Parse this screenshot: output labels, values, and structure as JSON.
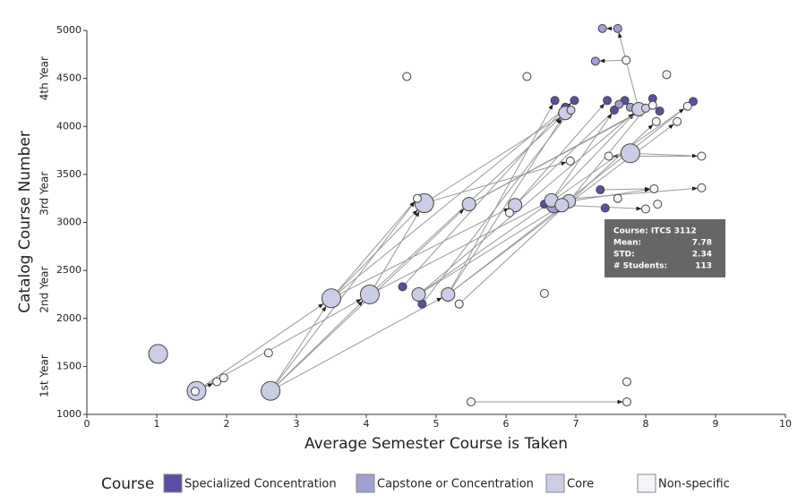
{
  "chart_data": {
    "type": "scatter",
    "xlabel": "Average Semester Course is Taken",
    "ylabel": "Catalog Course Number",
    "year_labels": [
      "1st Year",
      "2nd Year",
      "3rd Year",
      "4th Year"
    ],
    "xlim": [
      0,
      10
    ],
    "xticks": [
      0,
      1,
      2,
      3,
      4,
      5,
      6,
      7,
      8,
      9,
      10
    ],
    "ylim": [
      1000,
      5000
    ],
    "yticks": [
      1000,
      1500,
      2000,
      2500,
      3000,
      3500,
      4000,
      4500,
      5000
    ],
    "legend_title": "Course",
    "series": [
      {
        "name": "Specialized Concentration",
        "color": "#5b4fa0",
        "x": [
          4.52,
          4.8,
          6.55,
          6.75,
          7.35,
          7.42,
          6.7,
          6.98,
          7.45,
          7.7,
          8.1,
          8.68,
          7.55,
          6.85,
          8.2
        ],
        "y": [
          2330,
          2150,
          3190,
          3150,
          3340,
          3150,
          4270,
          4270,
          4270,
          4270,
          4290,
          4260,
          4170,
          4200,
          4160
        ],
        "sizes": [
          1,
          1,
          1,
          1,
          1,
          1,
          1,
          1,
          1,
          1,
          1,
          1,
          1,
          1,
          1
        ]
      },
      {
        "name": "Capstone or Concentration",
        "color": "#a09fd1",
        "x": [
          7.38,
          7.6,
          7.28,
          7.78,
          7.62,
          6.68
        ],
        "y": [
          5020,
          5020,
          4680,
          4200,
          4230,
          3170
        ],
        "sizes": [
          1,
          1,
          1,
          1,
          1,
          2
        ]
      },
      {
        "name": "Core",
        "color": "#cbcce5",
        "x": [
          1.02,
          1.57,
          2.63,
          3.5,
          4.05,
          4.75,
          5.17,
          4.83,
          5.47,
          6.13,
          6.65,
          6.9,
          6.8,
          7.78,
          6.85,
          6.93,
          7.9,
          8.0
        ],
        "y": [
          1630,
          1245,
          1245,
          2210,
          2250,
          2250,
          2250,
          3200,
          3190,
          3180,
          3230,
          3220,
          3180,
          3720,
          4140,
          4170,
          4180,
          4190
        ],
        "sizes": [
          3,
          3,
          3,
          3,
          3,
          2,
          2,
          3,
          2,
          2,
          2,
          2,
          2,
          3,
          2,
          1,
          2,
          1
        ]
      },
      {
        "name": "Non-specific",
        "color": "#f4f4f9",
        "x": [
          1.55,
          1.86,
          1.96,
          2.6,
          4.58,
          4.73,
          5.33,
          5.5,
          6.05,
          6.3,
          6.55,
          6.92,
          7.47,
          7.73,
          7.73,
          7.72,
          8.3,
          8.15,
          8.45,
          8.6,
          8.8,
          8.12,
          8.8,
          8.0,
          8.17,
          7.6,
          8.1
        ],
        "y": [
          1240,
          1340,
          1380,
          1640,
          4520,
          3250,
          2150,
          1130,
          3100,
          4520,
          2260,
          3640,
          3690,
          1340,
          1130,
          4690,
          4540,
          4050,
          4050,
          4210,
          3690,
          3350,
          3360,
          3140,
          3190,
          3250,
          4220
        ],
        "sizes": [
          1,
          1,
          1,
          1,
          1,
          1,
          1,
          1,
          1,
          1,
          1,
          1,
          1,
          1,
          1,
          1,
          1,
          1,
          1,
          1,
          1,
          1,
          1,
          1,
          1,
          1,
          1
        ]
      }
    ],
    "links": [
      [
        [
          2,
          1
        ],
        [
          2,
          3
        ]
      ],
      [
        [
          2,
          1
        ],
        [
          2,
          4
        ]
      ],
      [
        [
          2,
          2
        ],
        [
          2,
          4
        ]
      ],
      [
        [
          2,
          2
        ],
        [
          2,
          3
        ]
      ],
      [
        [
          2,
          2
        ],
        [
          2,
          8
        ]
      ],
      [
        [
          2,
          2
        ],
        [
          2,
          6
        ]
      ],
      [
        [
          2,
          3
        ],
        [
          2,
          7
        ]
      ],
      [
        [
          2,
          3
        ],
        [
          2,
          9
        ]
      ],
      [
        [
          2,
          4
        ],
        [
          2,
          14
        ]
      ],
      [
        [
          2,
          4
        ],
        [
          2,
          10
        ]
      ],
      [
        [
          2,
          4
        ],
        [
          2,
          7
        ]
      ],
      [
        [
          2,
          5
        ],
        [
          2,
          16
        ]
      ],
      [
        [
          2,
          5
        ],
        [
          2,
          12
        ]
      ],
      [
        [
          2,
          6
        ],
        [
          2,
          14
        ]
      ],
      [
        [
          2,
          6
        ],
        [
          2,
          11
        ]
      ],
      [
        [
          2,
          6
        ],
        [
          0,
          6
        ]
      ],
      [
        [
          2,
          7
        ],
        [
          2,
          15
        ]
      ],
      [
        [
          2,
          8
        ],
        [
          2,
          17
        ]
      ],
      [
        [
          2,
          9
        ],
        [
          0,
          8
        ]
      ],
      [
        [
          2,
          10
        ],
        [
          2,
          16
        ]
      ],
      [
        [
          2,
          11
        ],
        [
          2,
          17
        ]
      ],
      [
        [
          2,
          12
        ],
        [
          0,
          11
        ]
      ],
      [
        [
          3,
          20
        ],
        [
          3,
          12
        ]
      ],
      [
        [
          3,
          15
        ],
        [
          1,
          2
        ]
      ],
      [
        [
          1,
          1
        ],
        [
          1,
          0
        ]
      ],
      [
        [
          2,
          16
        ],
        [
          1,
          1
        ]
      ],
      [
        [
          3,
          7
        ],
        [
          3,
          14
        ]
      ],
      [
        [
          2,
          10
        ],
        [
          3,
          22
        ]
      ],
      [
        [
          2,
          11
        ],
        [
          3,
          21
        ]
      ],
      [
        [
          0,
          4
        ],
        [
          3,
          21
        ]
      ],
      [
        [
          2,
          12
        ],
        [
          3,
          23
        ]
      ],
      [
        [
          2,
          2
        ],
        [
          3,
          5
        ]
      ],
      [
        [
          2,
          3
        ],
        [
          3,
          5
        ]
      ],
      [
        [
          0,
          1
        ],
        [
          2,
          15
        ]
      ],
      [
        [
          0,
          0
        ],
        [
          0,
          13
        ]
      ],
      [
        [
          3,
          0
        ],
        [
          3,
          1
        ]
      ],
      [
        [
          3,
          1
        ],
        [
          3,
          2
        ]
      ],
      [
        [
          2,
          6
        ],
        [
          3,
          18
        ]
      ],
      [
        [
          2,
          5
        ],
        [
          3,
          19
        ]
      ],
      [
        [
          2,
          7
        ],
        [
          3,
          11
        ]
      ],
      [
        [
          2,
          9
        ],
        [
          0,
          9
        ]
      ],
      [
        [
          2,
          3
        ],
        [
          0,
          7
        ]
      ],
      [
        [
          2,
          8
        ],
        [
          3,
          26
        ]
      ],
      [
        [
          3,
          6
        ],
        [
          3,
          17
        ]
      ],
      [
        [
          2,
          10
        ],
        [
          0,
          12
        ]
      ],
      [
        [
          2,
          13
        ],
        [
          3,
          20
        ]
      ]
    ],
    "tooltip": {
      "title": "Course: ITCS 3112",
      "rows": [
        [
          "Mean:",
          "7.78"
        ],
        [
          "STD:",
          "2.34"
        ],
        [
          "# Students:",
          "113"
        ]
      ]
    }
  }
}
